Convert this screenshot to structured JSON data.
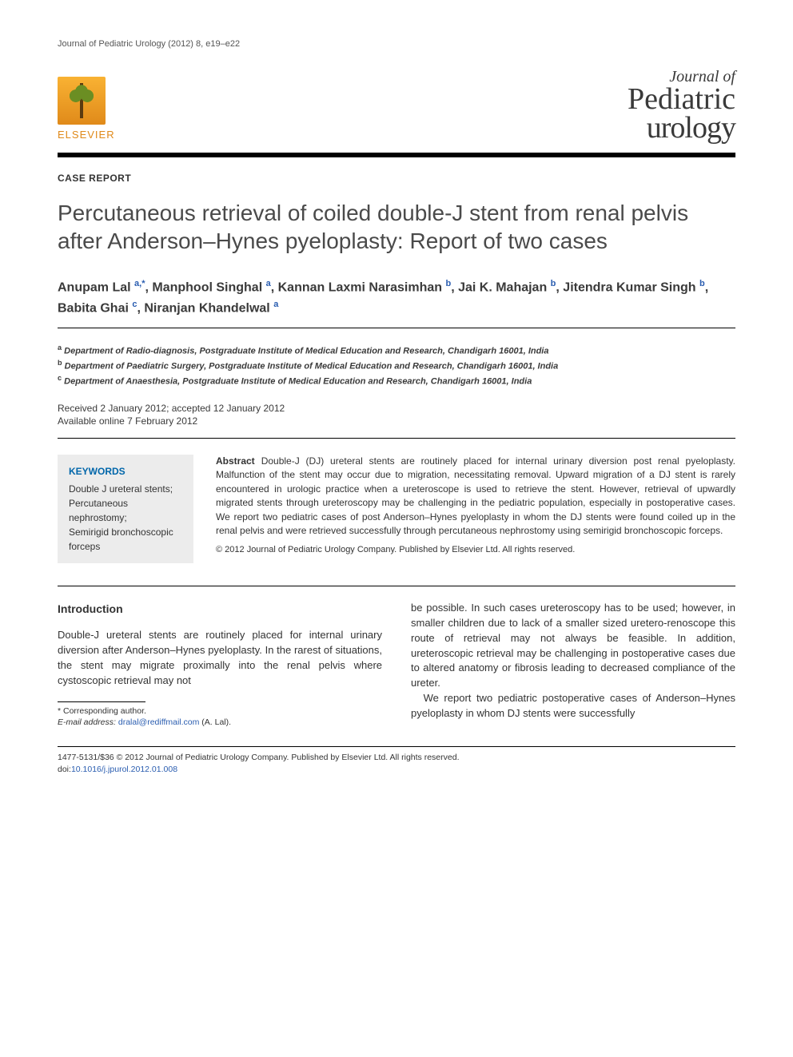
{
  "journal_ref": "Journal of Pediatric Urology (2012) 8, e19–e22",
  "publisher": {
    "name": "ELSEVIER"
  },
  "journal_logo": {
    "line1": "Journal of",
    "line2": "Pediatric",
    "line3": "urology"
  },
  "article_type": "CASE REPORT",
  "title": "Percutaneous retrieval of coiled double-J stent from renal pelvis after Anderson–Hynes pyeloplasty: Report of two cases",
  "authors_html": "Anupam Lal <sup>a,</sup><sup class=\"star\">*</sup>, Manphool Singhal <sup>a</sup>, Kannan Laxmi Narasimhan <sup>b</sup>, Jai K. Mahajan <sup>b</sup>, Jitendra Kumar Singh <sup>b</sup>, Babita Ghai <sup>c</sup>, Niranjan Khandelwal <sup>a</sup>",
  "affiliations": [
    {
      "sup": "a",
      "text": "Department of Radio-diagnosis, Postgraduate Institute of Medical Education and Research, Chandigarh 16001, India"
    },
    {
      "sup": "b",
      "text": "Department of Paediatric Surgery, Postgraduate Institute of Medical Education and Research, Chandigarh 16001, India"
    },
    {
      "sup": "c",
      "text": "Department of Anaesthesia, Postgraduate Institute of Medical Education and Research, Chandigarh 16001, India"
    }
  ],
  "dates": {
    "received_accepted": "Received 2 January 2012; accepted 12 January 2012",
    "online": "Available online 7 February 2012"
  },
  "keywords": {
    "heading": "KEYWORDS",
    "items": "Double J ureteral stents;\nPercutaneous nephrostomy;\nSemirigid bronchoscopic forceps"
  },
  "abstract": {
    "label": "Abstract",
    "text": "Double-J (DJ) ureteral stents are routinely placed for internal urinary diversion post renal pyeloplasty. Malfunction of the stent may occur due to migration, necessitating removal. Upward migration of a DJ stent is rarely encountered in urologic practice when a ureteroscope is used to retrieve the stent. However, retrieval of upwardly migrated stents through ureteroscopy may be challenging in the pediatric population, especially in postoperative cases. We report two pediatric cases of post Anderson–Hynes pyeloplasty in whom the DJ stents were found coiled up in the renal pelvis and were retrieved successfully through percutaneous nephrostomy using semirigid bronchoscopic forceps.",
    "copyright": "© 2012 Journal of Pediatric Urology Company. Published by Elsevier Ltd. All rights reserved."
  },
  "body": {
    "intro_heading": "Introduction",
    "col1_p1": "Double-J ureteral stents are routinely placed for internal urinary diversion after Anderson–Hynes pyeloplasty. In the rarest of situations, the stent may migrate proximally into the renal pelvis where cystoscopic retrieval may not",
    "col2_p1": "be possible. In such cases ureteroscopy has to be used; however, in smaller children due to lack of a smaller sized uretero-renoscope this route of retrieval may not always be feasible. In addition, ureteroscopic retrieval may be challenging in postoperative cases due to altered anatomy or fibrosis leading to decreased compliance of the ureter.",
    "col2_p2": "We report two pediatric postoperative cases of Anderson–Hynes pyeloplasty in whom DJ stents were successfully"
  },
  "footnotes": {
    "corresponding": "* Corresponding author.",
    "email_label": "E-mail address:",
    "email": "dralal@rediffmail.com",
    "email_name": "(A. Lal)."
  },
  "footer": {
    "line1": "1477-5131/$36 © 2012 Journal of Pediatric Urology Company. Published by Elsevier Ltd. All rights reserved.",
    "doi_label": "doi:",
    "doi": "10.1016/j.jpurol.2012.01.008"
  },
  "colors": {
    "link": "#2a5db0",
    "elsevier_orange": "#e08a1a",
    "kw_bg": "#ececec",
    "text": "#333333"
  }
}
